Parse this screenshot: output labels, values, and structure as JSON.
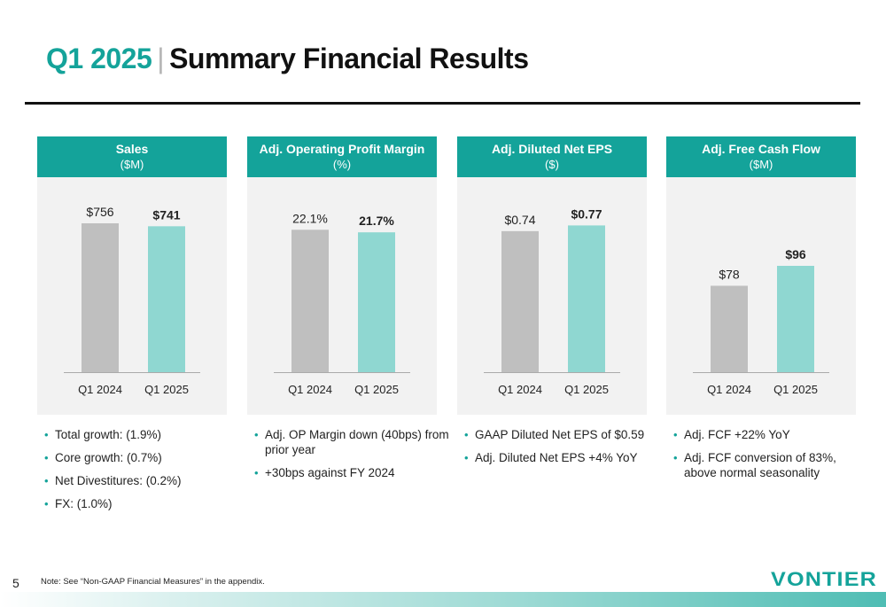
{
  "page": {
    "title_quarter": "Q1 2025",
    "title_separator": "|",
    "title_main": "Summary Financial Results",
    "slide_number": "5",
    "note": "Note: See “Non-GAAP Financial Measures” in the appendix.",
    "logo_text": "VONTIER"
  },
  "colors": {
    "accent": "#14a39a",
    "bar_prior": "#bfbfbf",
    "bar_current": "#8fd7d1",
    "panel_bg": "#f2f2f2"
  },
  "chart_data": [
    {
      "type": "bar",
      "title": "Sales",
      "unit": "($M)",
      "categories": [
        "Q1 2024",
        "Q1 2025"
      ],
      "values": [
        756,
        741
      ],
      "labels": [
        "$756",
        "$741"
      ],
      "ylim": [
        0,
        900
      ],
      "grid": false,
      "bullets": [
        "Total growth: (1.9%)",
        "Core growth: (0.7%)",
        "Net Divestitures: (0.2%)",
        "FX: (1.0%)"
      ]
    },
    {
      "type": "bar",
      "title": "Adj. Operating Profit Margin",
      "unit": "(%)",
      "categories": [
        "Q1 2024",
        "Q1 2025"
      ],
      "values": [
        22.1,
        21.7
      ],
      "labels": [
        "22.1%",
        "21.7%"
      ],
      "ylim": [
        0,
        27.5
      ],
      "grid": false,
      "bullets": [
        "Adj. OP Margin down (40bps) from prior year",
        "+30bps against FY 2024"
      ]
    },
    {
      "type": "bar",
      "title": "Adj. Diluted Net EPS",
      "unit": "($)",
      "categories": [
        "Q1 2024",
        "Q1 2025"
      ],
      "values": [
        0.74,
        0.77
      ],
      "labels": [
        "$0.74",
        "$0.77"
      ],
      "ylim": [
        0,
        0.93
      ],
      "grid": false,
      "bullets": [
        "GAAP Diluted Net EPS of $0.59",
        "Adj. Diluted Net EPS +4% YoY"
      ]
    },
    {
      "type": "bar",
      "title": "Adj. Free Cash Flow",
      "unit": "($M)",
      "categories": [
        "Q1 2024",
        "Q1 2025"
      ],
      "values": [
        78,
        96
      ],
      "labels": [
        "$78",
        "$96"
      ],
      "ylim": [
        0,
        160
      ],
      "grid": false,
      "bullets": [
        "Adj. FCF +22% YoY",
        "Adj. FCF conversion of 83%, above normal seasonality"
      ]
    }
  ]
}
